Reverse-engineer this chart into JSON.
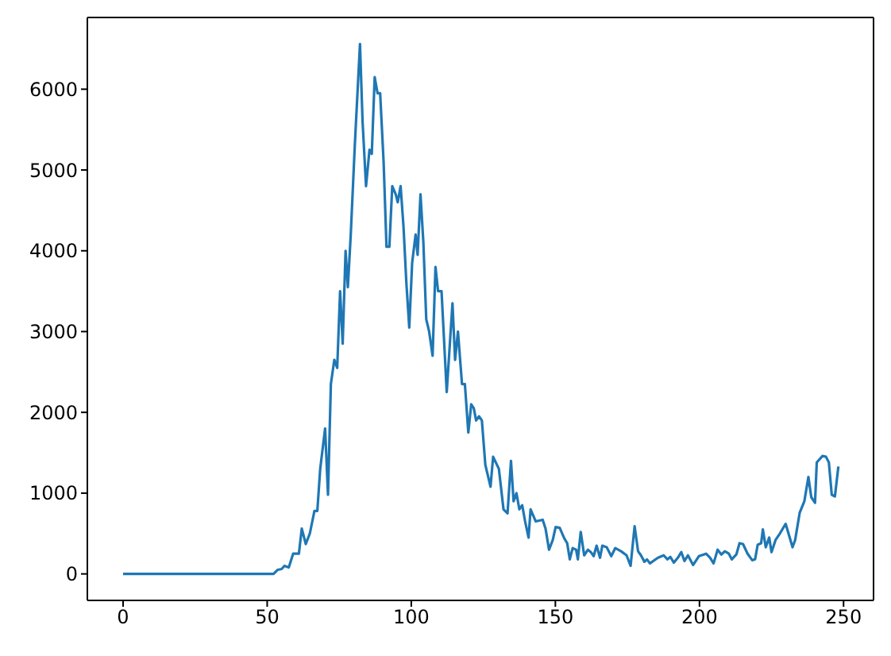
{
  "chart_data": {
    "type": "line",
    "x": [
      0,
      10,
      20,
      30,
      40,
      52.2,
      53.6,
      55,
      56,
      57.5,
      59,
      61,
      62,
      63.4,
      64.8,
      66.4,
      67.4,
      68.4,
      70.1,
      71.1,
      72.1,
      73.3,
      74.3,
      75.3,
      76.2,
      77.2,
      78,
      79,
      80.4,
      82.2,
      83.1,
      84.3,
      85.5,
      86.3,
      87.3,
      88.3,
      89.2,
      90.4,
      91.4,
      92.4,
      93.4,
      94.6,
      95.3,
      96.3,
      97.3,
      98.3,
      99.3,
      100.3,
      101.5,
      102.2,
      103.2,
      104.2,
      105.2,
      106.2,
      107.4,
      108.4,
      109.3,
      110.5,
      112.3,
      114.3,
      115.2,
      116.2,
      117.6,
      118.6,
      119.8,
      120.8,
      121.7,
      122.5,
      123.5,
      124.5,
      125.7,
      127.5,
      128.4,
      130.4,
      132,
      133.4,
      134.6,
      135.5,
      136.5,
      137.5,
      138.5,
      139.5,
      140.7,
      141.4,
      143.2,
      145.6,
      146.6,
      147.8,
      149.1,
      150.1,
      151.5,
      153.1,
      154.1,
      155,
      156,
      157.2,
      157.8,
      158.8,
      160,
      161.3,
      162.3,
      163.3,
      164.3,
      165.5,
      166.3,
      167.8,
      169.4,
      170.8,
      172.8,
      174.7,
      176.1,
      177.5,
      178.7,
      179.7,
      180.9,
      181.8,
      182.8,
      185.6,
      187.6,
      188.9,
      189.9,
      191.1,
      192.5,
      193.7,
      194.8,
      196,
      197.8,
      199.8,
      202.3,
      203.7,
      204.9,
      206.3,
      207.6,
      208.8,
      210.2,
      211.2,
      212.8,
      213.9,
      215.1,
      216.7,
      218.3,
      219.3,
      220.2,
      221.4,
      222,
      223,
      224.2,
      225,
      226.4,
      227.9,
      229.9,
      232.3,
      233.2,
      234.8,
      236.4,
      237.8,
      238.8,
      240.1,
      240.7,
      242.7,
      243.9,
      244.9,
      245.9,
      247,
      248.2
    ],
    "series": [
      {
        "color": "#1f77b4",
        "values": [
          0,
          0,
          0,
          0,
          0,
          0,
          50,
          60,
          100,
          80,
          250,
          250,
          560,
          370,
          500,
          780,
          780,
          1300,
          1800,
          980,
          2350,
          2650,
          2550,
          3500,
          2850,
          4000,
          3550,
          4200,
          5300,
          6560,
          5600,
          4800,
          5250,
          5200,
          6150,
          5950,
          5950,
          5100,
          4050,
          4050,
          4800,
          4700,
          4600,
          4800,
          4300,
          3600,
          3050,
          3850,
          4200,
          3950,
          4700,
          4100,
          3150,
          3000,
          2700,
          3800,
          3500,
          3500,
          2250,
          3350,
          2650,
          3000,
          2350,
          2350,
          1750,
          2100,
          2050,
          1900,
          1950,
          1900,
          1350,
          1080,
          1450,
          1300,
          800,
          750,
          1400,
          900,
          1000,
          800,
          850,
          650,
          450,
          800,
          650,
          670,
          560,
          300,
          420,
          580,
          570,
          440,
          380,
          180,
          320,
          300,
          180,
          520,
          230,
          300,
          270,
          220,
          350,
          200,
          350,
          330,
          220,
          320,
          280,
          230,
          100,
          590,
          280,
          230,
          150,
          180,
          130,
          200,
          230,
          180,
          210,
          140,
          200,
          270,
          160,
          230,
          110,
          220,
          250,
          200,
          130,
          300,
          240,
          280,
          250,
          180,
          240,
          380,
          370,
          250,
          170,
          180,
          360,
          380,
          550,
          330,
          450,
          270,
          420,
          500,
          620,
          330,
          420,
          760,
          900,
          1200,
          950,
          880,
          1380,
          1460,
          1450,
          1380,
          980,
          960,
          1330
        ]
      }
    ],
    "xlim": [
      -12.4,
      260.4
    ],
    "xticks": [
      0,
      50,
      100,
      150,
      200,
      250
    ],
    "ylim": [
      -328,
      6888
    ],
    "yticks": [
      0,
      1000,
      2000,
      3000,
      4000,
      5000,
      6000
    ],
    "grid": false,
    "legend": false,
    "marker": "none",
    "line_style": "solid"
  }
}
